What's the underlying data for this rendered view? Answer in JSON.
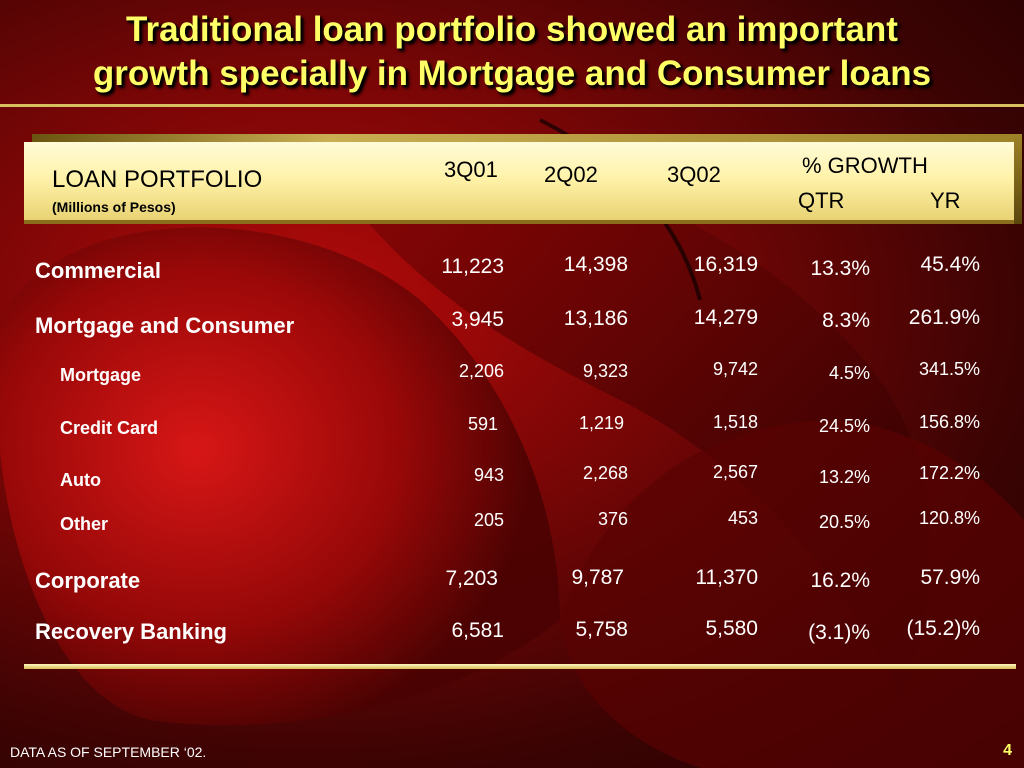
{
  "slide": {
    "title_line1": "Traditional loan portfolio showed an important",
    "title_line2": "growth specially in Mortgage and Consumer loans",
    "footer": "DATA AS OF SEPTEMBER ‘02.",
    "page_number": "4"
  },
  "table": {
    "header_title": "LOAN PORTFOLIO",
    "header_subtitle": "(Millions of Pesos)",
    "columns": [
      "3Q01",
      "2Q02",
      "3Q02"
    ],
    "growth_header": "% GROWTH",
    "growth_qtr": "QTR",
    "growth_yr": "YR",
    "rows": [
      {
        "label": "Commercial",
        "c1": "11,223",
        "c2": "14,398",
        "c3": "16,319",
        "qtr": "13.3%",
        "yr": "45.4%"
      },
      {
        "label": "Mortgage and Consumer",
        "c1": "3,945",
        "c2": "13,186",
        "c3": "14,279",
        "qtr": "8.3%",
        "yr": "261.9%"
      },
      {
        "label": "Mortgage",
        "c1": "2,206",
        "c2": "9,323",
        "c3": "9,742",
        "qtr": "4.5%",
        "yr": "341.5%"
      },
      {
        "label": "Credit Card",
        "c1": "591",
        "c2": "1,219",
        "c3": "1,518",
        "qtr": "24.5%",
        "yr": "156.8%"
      },
      {
        "label": "Auto",
        "c1": "943",
        "c2": "2,268",
        "c3": "2,567",
        "qtr": "13.2%",
        "yr": "172.2%"
      },
      {
        "label": "Other",
        "c1": "205",
        "c2": "376",
        "c3": "453",
        "qtr": "20.5%",
        "yr": "120.8%"
      },
      {
        "label": "Corporate",
        "c1": "7,203",
        "c2": "9,787",
        "c3": "11,370",
        "qtr": "16.2%",
        "yr": "57.9%"
      },
      {
        "label": "Recovery Banking",
        "c1": "6,581",
        "c2": "5,758",
        "c3": "5,580",
        "qtr": "(3.1)%",
        "yr": "(15.2)%"
      }
    ]
  }
}
